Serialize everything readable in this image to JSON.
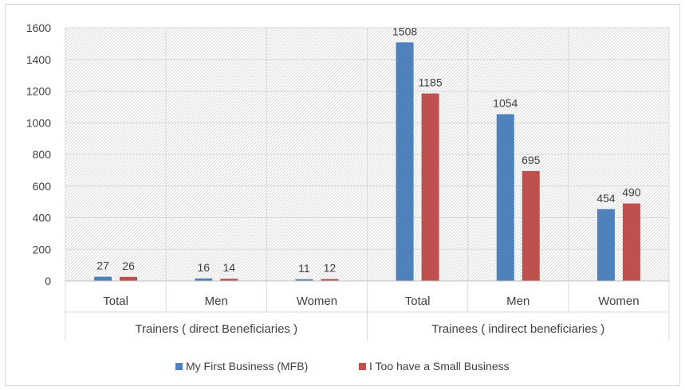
{
  "chart_data": {
    "type": "bar",
    "title": "",
    "xlabel": "",
    "ylabel": "",
    "ylim": [
      0,
      1600
    ],
    "yticks": [
      0,
      200,
      400,
      600,
      800,
      1000,
      1200,
      1400,
      1600
    ],
    "grid": true,
    "legend_position": "bottom",
    "categories": [
      "Total",
      "Men",
      "Women",
      "Total",
      "Men",
      "Women"
    ],
    "groups": [
      {
        "label": "Trainers ( direct Beneficiaries )",
        "categories": [
          0,
          1,
          2
        ]
      },
      {
        "label": "Trainees ( indirect beneficiaries )",
        "categories": [
          3,
          4,
          5
        ]
      }
    ],
    "series": [
      {
        "name": "My First Business (MFB)",
        "color": "#4F81BD",
        "values": [
          27,
          16,
          11,
          1508,
          1054,
          454
        ]
      },
      {
        "name": "I Too have a Small Business",
        "color": "#C0504D",
        "values": [
          26,
          14,
          12,
          1185,
          695,
          490
        ]
      }
    ]
  }
}
